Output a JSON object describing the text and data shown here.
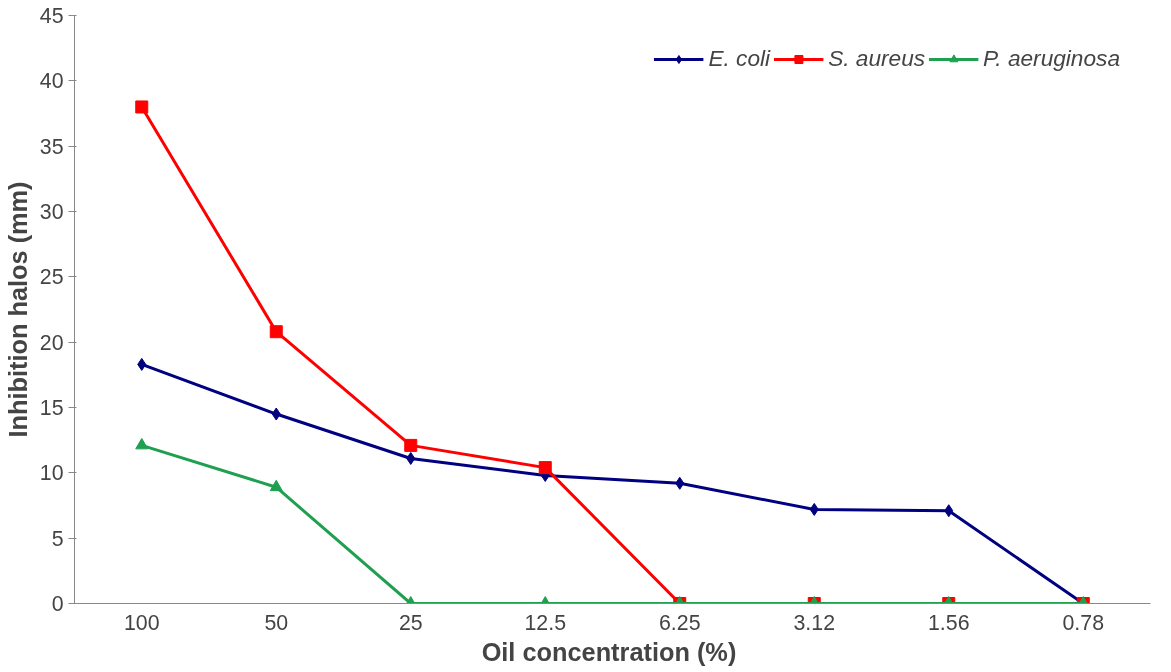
{
  "chart_data": {
    "type": "line",
    "xlabel": "Oil concentration  (%)",
    "ylabel": "Inhibition halos (mm)",
    "categories": [
      "100",
      "50",
      "25",
      "12.5",
      "6.25",
      "3.12",
      "1.56",
      "0.78"
    ],
    "series": [
      {
        "name": "E. coli",
        "color": "#000080",
        "marker": "diamond",
        "values": [
          18.3,
          14.5,
          11.1,
          9.8,
          9.2,
          7.2,
          7.1,
          0
        ]
      },
      {
        "name": "S. aureus",
        "color": "#ff0000",
        "marker": "square",
        "values": [
          38,
          20.8,
          12.1,
          10.4,
          0,
          0,
          0,
          0
        ]
      },
      {
        "name": "P. aeruginosa",
        "color": "#1fa050",
        "marker": "triangle",
        "values": [
          12.1,
          8.9,
          0,
          0,
          0,
          0,
          0,
          0
        ]
      }
    ],
    "ylim": [
      0,
      45
    ],
    "yticks": [
      0,
      5,
      10,
      15,
      20,
      25,
      30,
      35,
      40,
      45
    ],
    "grid": false,
    "legend": "top right"
  }
}
